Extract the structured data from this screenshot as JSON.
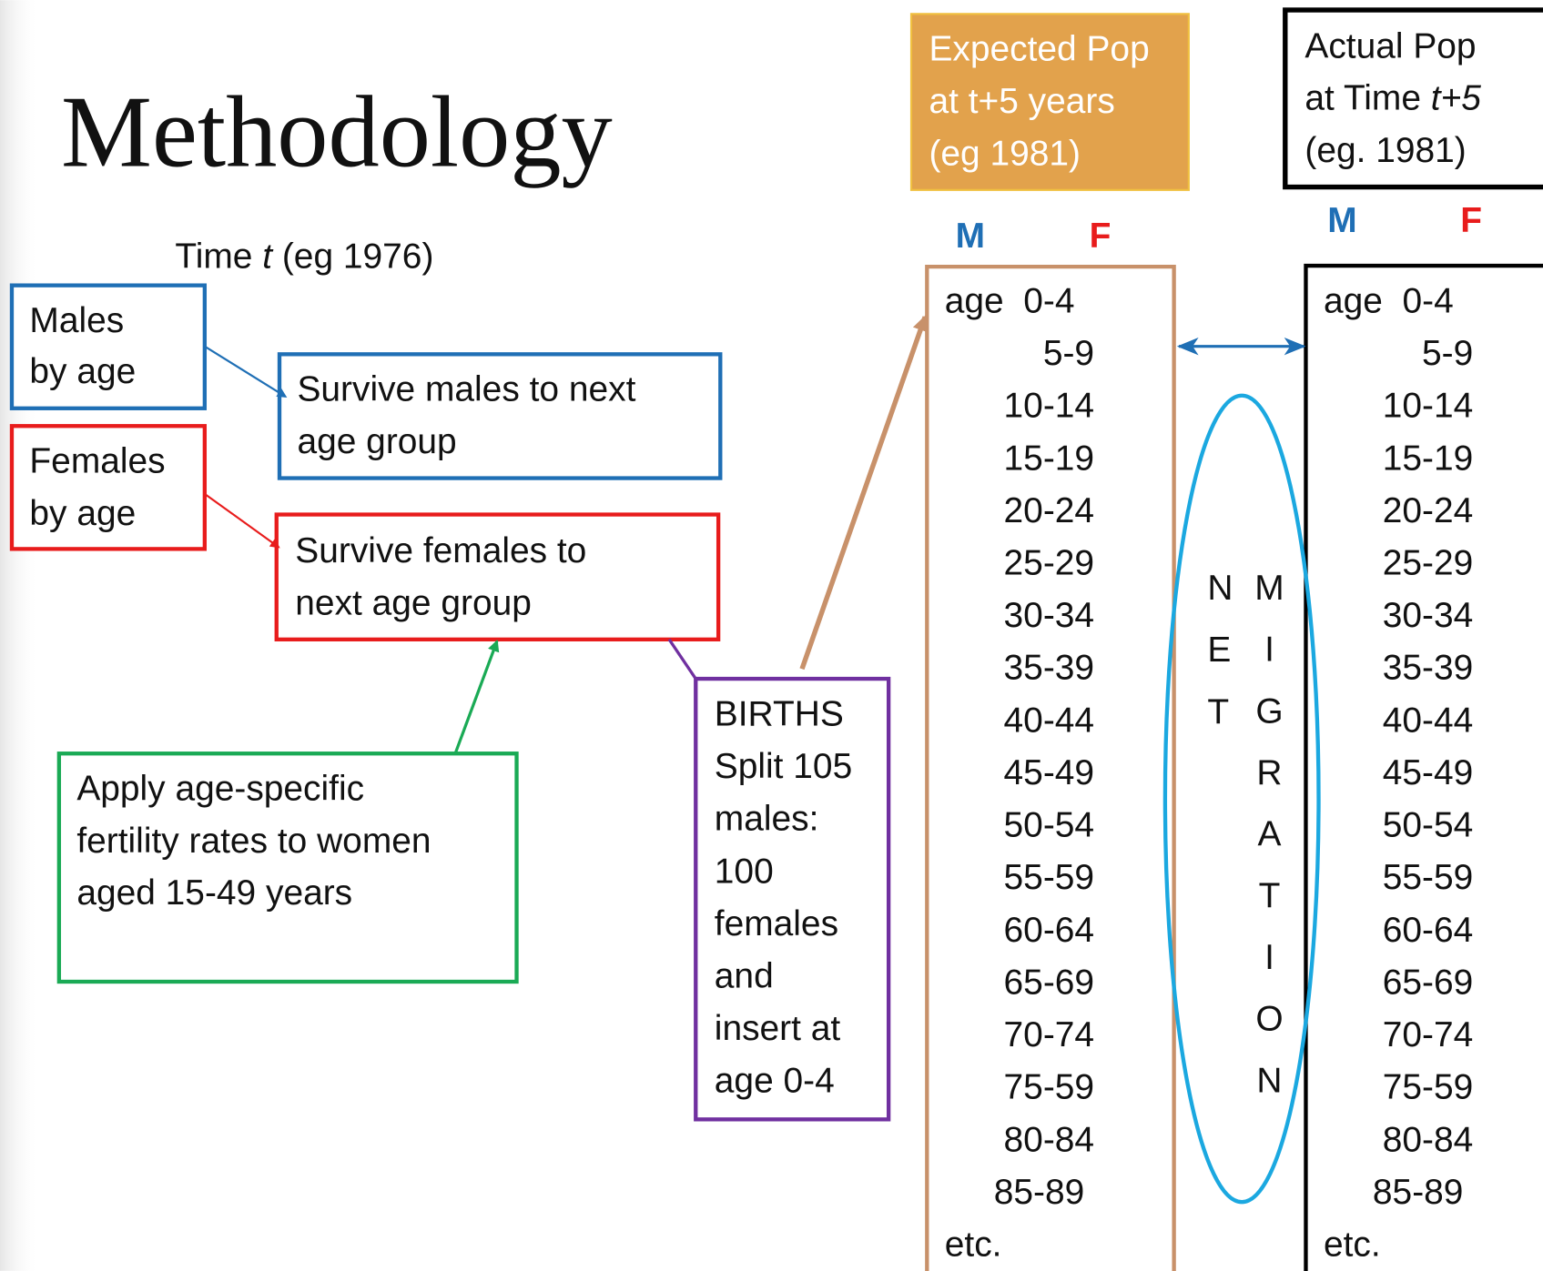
{
  "title": "Methodology",
  "time_label": {
    "pre": "Time ",
    "em": "t",
    "post": " (eg 1976)"
  },
  "males_box": [
    "Males",
    "by age"
  ],
  "females_box": [
    "Females",
    "by age"
  ],
  "survive_males": [
    "Survive males to next",
    "age group"
  ],
  "survive_females": [
    "Survive females to",
    "next age group"
  ],
  "fertility": [
    "Apply age-specific",
    "fertility rates to women",
    "aged 15-49 years"
  ],
  "births": [
    "BIRTHS",
    "Split 105",
    "males:",
    "100",
    "females",
    "and",
    "insert at",
    "age 0-4"
  ],
  "expected": {
    "lines": [
      "Expected Pop",
      "at t+5 years",
      "(eg 1981)"
    ],
    "m": "M",
    "f": "F",
    "ages": [
      "age  0-4",
      "5-9",
      "10-14",
      "15-19",
      "20-24",
      "25-29",
      "30-34",
      "35-39",
      "40-44",
      "45-49",
      "50-54",
      "55-59",
      "60-64",
      "65-69",
      "70-74",
      "75-59",
      "80-84",
      "85-89",
      "etc."
    ]
  },
  "actual": {
    "line1": "Actual Pop",
    "line2": {
      "pre": "at Time ",
      "em": "t+5"
    },
    "line3": "(eg. 1981)",
    "m": "M",
    "f": "F",
    "ages": [
      "age  0-4",
      "5-9",
      "10-14",
      "15-19",
      "20-24",
      "25-29",
      "30-34",
      "35-39",
      "40-44",
      "45-49",
      "50-54",
      "55-59",
      "60-64",
      "65-69",
      "70-74",
      "75-59",
      "80-84",
      "85-89",
      "etc."
    ]
  },
  "net_migration": {
    "net": [
      "N",
      "E",
      "T"
    ],
    "migration": [
      "M",
      "I",
      "G",
      "R",
      "A",
      "T",
      "I",
      "O",
      "N"
    ]
  }
}
